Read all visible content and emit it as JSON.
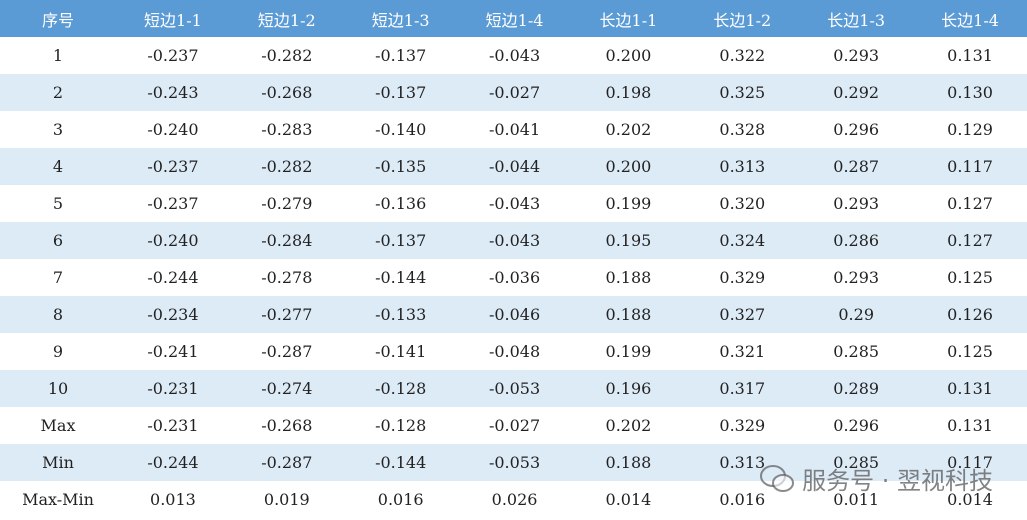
{
  "table": {
    "header": [
      "序号",
      "短边1-1",
      "短边1-2",
      "短边1-3",
      "短边1-4",
      "长边1-1",
      "长边1-2",
      "长边1-3",
      "长边1-4"
    ],
    "rows": [
      [
        "1",
        "-0.237",
        "-0.282",
        "-0.137",
        "-0.043",
        "0.200",
        "0.322",
        "0.293",
        "0.131"
      ],
      [
        "2",
        "-0.243",
        "-0.268",
        "-0.137",
        "-0.027",
        "0.198",
        "0.325",
        "0.292",
        "0.130"
      ],
      [
        "3",
        "-0.240",
        "-0.283",
        "-0.140",
        "-0.041",
        "0.202",
        "0.328",
        "0.296",
        "0.129"
      ],
      [
        "4",
        "-0.237",
        "-0.282",
        "-0.135",
        "-0.044",
        "0.200",
        "0.313",
        "0.287",
        "0.117"
      ],
      [
        "5",
        "-0.237",
        "-0.279",
        "-0.136",
        "-0.043",
        "0.199",
        "0.320",
        "0.293",
        "0.127"
      ],
      [
        "6",
        "-0.240",
        "-0.284",
        "-0.137",
        "-0.043",
        "0.195",
        "0.324",
        "0.286",
        "0.127"
      ],
      [
        "7",
        "-0.244",
        "-0.278",
        "-0.144",
        "-0.036",
        "0.188",
        "0.329",
        "0.293",
        "0.125"
      ],
      [
        "8",
        "-0.234",
        "-0.277",
        "-0.133",
        "-0.046",
        "0.188",
        "0.327",
        "0.29",
        "0.126"
      ],
      [
        "9",
        "-0.241",
        "-0.287",
        "-0.141",
        "-0.048",
        "0.199",
        "0.321",
        "0.285",
        "0.125"
      ],
      [
        "10",
        "-0.231",
        "-0.274",
        "-0.128",
        "-0.053",
        "0.196",
        "0.317",
        "0.289",
        "0.131"
      ],
      [
        "Max",
        "-0.231",
        "-0.268",
        "-0.128",
        "-0.027",
        "0.202",
        "0.329",
        "0.296",
        "0.131"
      ],
      [
        "Min",
        "-0.244",
        "-0.287",
        "-0.144",
        "-0.053",
        "0.188",
        "0.313",
        "0.285",
        "0.117"
      ],
      [
        "Max-Min",
        "0.013",
        "0.019",
        "0.016",
        "0.026",
        "0.014",
        "0.016",
        "0.011",
        "0.014"
      ]
    ]
  },
  "watermark": "服务号 · 翌视科技"
}
